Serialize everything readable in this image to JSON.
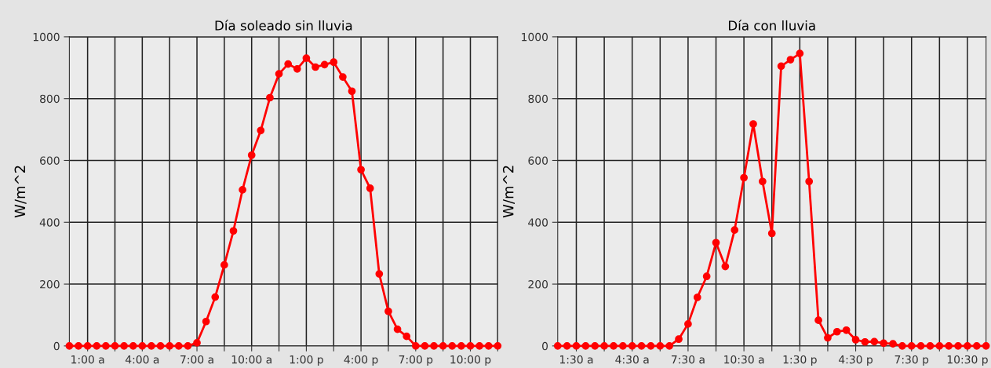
{
  "chart_data": [
    {
      "type": "line",
      "title": "Día soleado sin lluvia",
      "ylabel": "W/m^2",
      "marker": "circle",
      "line_style": "solid",
      "grid": true,
      "xlim": [
        0,
        23.5
      ],
      "ylim": [
        0,
        1000
      ],
      "yticks": [
        0,
        200,
        400,
        600,
        800,
        1000
      ],
      "xticks": [
        {
          "value": 1,
          "label": "1:00 a"
        },
        {
          "value": 2.5,
          "label": null
        },
        {
          "value": 4,
          "label": "4:00 a"
        },
        {
          "value": 5.5,
          "label": null
        },
        {
          "value": 7,
          "label": "7:00 a"
        },
        {
          "value": 8.5,
          "label": null
        },
        {
          "value": 10,
          "label": "10:00 a"
        },
        {
          "value": 11.5,
          "label": null
        },
        {
          "value": 13,
          "label": "1:00 p"
        },
        {
          "value": 14.5,
          "label": null
        },
        {
          "value": 16,
          "label": "4:00 p"
        },
        {
          "value": 17.5,
          "label": null
        },
        {
          "value": 19,
          "label": "7:00 p"
        },
        {
          "value": 20.5,
          "label": null
        },
        {
          "value": 22,
          "label": "10:00 p"
        },
        {
          "value": 23.5,
          "label": null
        }
      ],
      "x": [
        0,
        0.5,
        1,
        1.5,
        2,
        2.5,
        3,
        3.5,
        4,
        4.5,
        5,
        5.5,
        6,
        6.5,
        7,
        7.5,
        8,
        8.5,
        9,
        9.5,
        10,
        10.5,
        11,
        11.5,
        12,
        12.5,
        13,
        13.5,
        14,
        14.5,
        15,
        15.5,
        16,
        16.5,
        17,
        17.5,
        18,
        18.5,
        19,
        19.5,
        20,
        20.5,
        21,
        21.5,
        22,
        22.5,
        23,
        23.5
      ],
      "series": [
        {
          "color": "#ff0000",
          "values": [
            0,
            0,
            0,
            0,
            0,
            0,
            0,
            0,
            0,
            0,
            0,
            0,
            0,
            0,
            10,
            79,
            158,
            262,
            372,
            505,
            617,
            697,
            803,
            880,
            912,
            896,
            931,
            902,
            910,
            918,
            870,
            824,
            570,
            510,
            233,
            112,
            54,
            31,
            0,
            0,
            0,
            0,
            0,
            0,
            0,
            0,
            0,
            0
          ]
        }
      ]
    },
    {
      "type": "line",
      "title": "Día con lluvia",
      "ylabel": "W/m^2",
      "marker": "circle",
      "line_style": "solid",
      "grid": true,
      "xlim": [
        0.5,
        23.5
      ],
      "ylim": [
        0,
        1000
      ],
      "yticks": [
        0,
        200,
        400,
        600,
        800,
        1000
      ],
      "xticks": [
        {
          "value": 1.5,
          "label": "1:30 a"
        },
        {
          "value": 3,
          "label": null
        },
        {
          "value": 4.5,
          "label": "4:30 a"
        },
        {
          "value": 6,
          "label": null
        },
        {
          "value": 7.5,
          "label": "7:30 a"
        },
        {
          "value": 9,
          "label": null
        },
        {
          "value": 10.5,
          "label": "10:30 a"
        },
        {
          "value": 12,
          "label": null
        },
        {
          "value": 13.5,
          "label": "1:30 p"
        },
        {
          "value": 15,
          "label": null
        },
        {
          "value": 16.5,
          "label": "4:30 p"
        },
        {
          "value": 18,
          "label": null
        },
        {
          "value": 19.5,
          "label": "7:30 p"
        },
        {
          "value": 21,
          "label": null
        },
        {
          "value": 22.5,
          "label": "10:30 p"
        }
      ],
      "x": [
        0.5,
        1,
        1.5,
        2,
        2.5,
        3,
        3.5,
        4,
        4.5,
        5,
        5.5,
        6,
        6.5,
        7,
        7.5,
        8,
        8.5,
        9,
        9.5,
        10,
        10.5,
        11,
        11.5,
        12,
        12.5,
        13,
        13.5,
        14,
        14.5,
        15,
        15.5,
        16,
        16.5,
        17,
        17.5,
        18,
        18.5,
        19,
        19.5,
        20,
        20.5,
        21,
        21.5,
        22,
        22.5,
        23,
        23.5
      ],
      "series": [
        {
          "color": "#ff0000",
          "values": [
            0,
            0,
            0,
            0,
            0,
            0,
            0,
            0,
            0,
            0,
            0,
            0,
            0,
            22,
            71,
            157,
            225,
            334,
            257,
            375,
            544,
            718,
            532,
            364,
            905,
            926,
            946,
            532,
            83,
            26,
            46,
            51,
            20,
            13,
            14,
            9,
            7,
            0,
            0,
            0,
            0,
            0,
            0,
            0,
            0,
            0,
            0
          ]
        }
      ]
    }
  ]
}
